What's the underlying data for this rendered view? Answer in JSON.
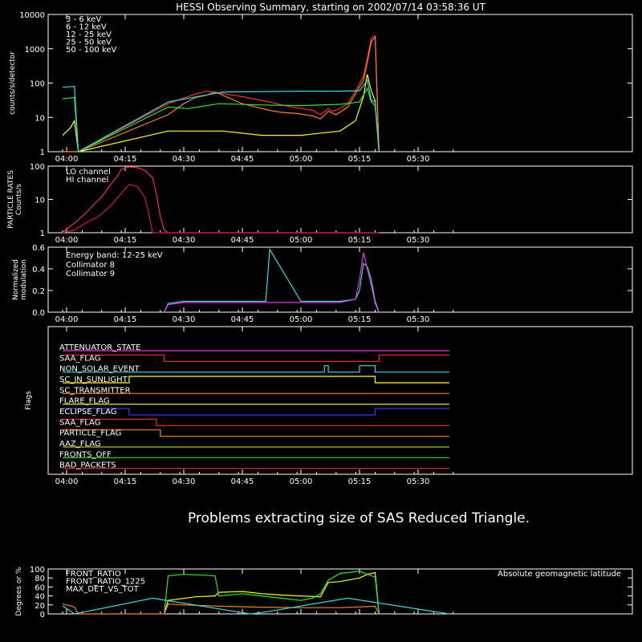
{
  "title": "HESSI Observing Summary, starting on 2002/07/14 03:58:36 UT",
  "message": "Problems extracting size of SAS Reduced Triangle.",
  "colors": {
    "background": "#000000",
    "axes": "#ffffff",
    "red": "#ff2a2a",
    "orange": "#ff7f1a",
    "yellow": "#ffff00",
    "green": "#22ee22",
    "cyan": "#33dddd",
    "magenta": "#ee33ee",
    "blue": "#3333ff",
    "crimson": "#dd1144",
    "olive": "#bbbb33"
  },
  "time_ticks": [
    "04:00",
    "04:15",
    "04:30",
    "04:45",
    "05:00",
    "05:15",
    "05:30"
  ],
  "chart_data": [
    {
      "type": "line",
      "panel": "count_rates",
      "ylabel": "counts/s/detector",
      "yscale": "log",
      "ylim": [
        1,
        10000
      ],
      "ytick_labels": [
        "1",
        "10",
        "100",
        "1000",
        "10000"
      ],
      "legend_position": "top-left",
      "x_unit": "UT",
      "series": [
        {
          "name": "3 - 6 keV",
          "color": "#ff2a2a",
          "x": [
            "03:59",
            "04:01",
            "04:02",
            "04:03",
            "04:26",
            "04:33",
            "04:36",
            "04:39",
            "04:45",
            "04:52",
            "04:56",
            "04:59",
            "05:03",
            "05:05",
            "05:07",
            "05:08",
            "05:10",
            "05:12",
            "05:14",
            "05:16",
            "05:17",
            "05:18",
            "05:19",
            "05:20"
          ],
          "y": [
            1,
            1,
            1,
            1,
            25,
            48,
            58,
            52,
            40,
            28,
            22,
            19,
            16,
            12,
            18,
            15,
            18,
            25,
            60,
            160,
            520,
            2000,
            2400,
            1
          ]
        },
        {
          "name": "6 - 12 keV",
          "color": "#ff7f1a",
          "x": [
            "03:59",
            "04:01",
            "04:02",
            "04:03",
            "04:26",
            "04:30",
            "04:33",
            "04:36",
            "04:38",
            "04:45",
            "04:52",
            "04:55",
            "04:59",
            "05:03",
            "05:05",
            "05:07",
            "05:09",
            "05:12",
            "05:14",
            "05:16",
            "05:17",
            "05:18",
            "05:19",
            "05:20"
          ],
          "y": [
            1,
            1,
            1,
            1,
            12,
            25,
            38,
            45,
            55,
            25,
            16,
            14,
            13,
            11,
            9,
            15,
            12,
            20,
            50,
            120,
            400,
            1600,
            2200,
            1
          ]
        },
        {
          "name": "12 - 25 keV",
          "color": "#ffff00",
          "x": [
            "03:59",
            "04:01",
            "04:02",
            "04:03",
            "04:26",
            "04:31",
            "04:40",
            "04:50",
            "05:00",
            "05:10",
            "05:14",
            "05:16",
            "05:17",
            "05:18",
            "05:19",
            "05:20"
          ],
          "y": [
            3,
            5,
            8,
            1,
            4,
            4,
            4,
            3,
            3,
            4,
            8,
            40,
            180,
            60,
            30,
            1
          ]
        },
        {
          "name": "25 - 50 keV",
          "color": "#22ee22",
          "x": [
            "03:59",
            "04:02",
            "04:03",
            "04:26",
            "04:31",
            "04:39",
            "04:50",
            "05:00",
            "05:10",
            "05:15",
            "05:17",
            "05:18",
            "05:19",
            "05:20"
          ],
          "y": [
            35,
            38,
            1,
            20,
            18,
            25,
            23,
            22,
            24,
            28,
            70,
            28,
            22,
            1
          ]
        },
        {
          "name": "50 - 100 keV",
          "color": "#33dddd",
          "x": [
            "03:59",
            "04:02",
            "04:03",
            "04:26",
            "04:40",
            "05:00",
            "05:10",
            "05:15",
            "05:17",
            "05:18",
            "05:19",
            "05:20"
          ],
          "y": [
            75,
            80,
            1,
            28,
            55,
            58,
            58,
            60,
            120,
            32,
            28,
            1
          ]
        }
      ]
    },
    {
      "type": "line",
      "panel": "particle_rates",
      "ylabel": "PARTICLE RATES Counts/s",
      "yscale": "log",
      "ylim": [
        1,
        100
      ],
      "ytick_labels": [
        "1",
        "10",
        "100"
      ],
      "legend_position": "top-left",
      "series": [
        {
          "name": "LO channel",
          "color": "#ff2a2a",
          "x": [
            "03:59",
            "04:01",
            "04:03",
            "04:05",
            "04:07",
            "04:09",
            "04:11",
            "04:13",
            "04:14",
            "04:16",
            "04:18",
            "04:20",
            "04:22",
            "04:23",
            "04:24",
            "04:25",
            "04:26",
            "05:20"
          ],
          "y": [
            1,
            1.6,
            2.4,
            4,
            7,
            12,
            25,
            50,
            80,
            95,
            90,
            75,
            45,
            15,
            3,
            1.2,
            1,
            1
          ]
        },
        {
          "name": "HI channel",
          "color": "#dd1144",
          "x": [
            "03:59",
            "04:02",
            "04:05",
            "04:08",
            "04:11",
            "04:14",
            "04:16",
            "04:18",
            "04:20",
            "04:21",
            "04:22",
            "05:20"
          ],
          "y": [
            1,
            1.2,
            2,
            3,
            6,
            15,
            28,
            25,
            12,
            4,
            1,
            1
          ]
        }
      ]
    },
    {
      "type": "line",
      "panel": "modulation",
      "title": "Energy band: 12-25 keV",
      "ylabel": "Normalized modulation",
      "ylim": [
        0,
        0.6
      ],
      "ytick_labels": [
        "0.0",
        "0.2",
        "0.4",
        "0.6"
      ],
      "legend_position": "top-left",
      "series": [
        {
          "name": "Collimator 8",
          "color": "#33dddd",
          "x": [
            "04:25",
            "04:26",
            "04:30",
            "04:40",
            "04:51",
            "04:52",
            "05:00",
            "05:10",
            "05:14",
            "05:15",
            "05:16",
            "05:17",
            "05:18",
            "05:19",
            "05:20"
          ],
          "y": [
            0,
            0.08,
            0.1,
            0.1,
            0.1,
            0.58,
            0.1,
            0.1,
            0.12,
            0.2,
            0.45,
            0.42,
            0.3,
            0.1,
            0
          ]
        },
        {
          "name": "Collimator 9",
          "color": "#ee33ee",
          "x": [
            "04:25",
            "04:26",
            "04:30",
            "04:40",
            "05:00",
            "05:10",
            "05:14",
            "05:15",
            "05:16",
            "05:17",
            "05:18",
            "05:19",
            "05:20"
          ],
          "y": [
            0,
            0.07,
            0.09,
            0.09,
            0.09,
            0.09,
            0.12,
            0.3,
            0.55,
            0.4,
            0.25,
            0.08,
            0
          ]
        }
      ]
    },
    {
      "type": "line",
      "panel": "flags",
      "ylabel": "Flags",
      "series": [
        {
          "name": "ATTENUATOR_STATE",
          "color": "#ee33ee",
          "x": [
            "03:59",
            "05:38"
          ],
          "y": [
            0,
            0
          ]
        },
        {
          "name": "SAA_FLAG",
          "color": "#ff2a2a",
          "x": [
            "03:59",
            "04:25",
            "04:25",
            "05:20",
            "05:20",
            "05:38"
          ],
          "y": [
            1,
            1,
            0,
            0,
            1,
            1
          ]
        },
        {
          "name": "NON_SOLAR_EVENT",
          "color": "#33dddd",
          "x": [
            "03:59",
            "05:06",
            "05:06",
            "05:07",
            "05:07",
            "05:15",
            "05:15",
            "05:19",
            "05:19",
            "05:38"
          ],
          "y": [
            0,
            0,
            1,
            1,
            0,
            0,
            1,
            1,
            0,
            0
          ]
        },
        {
          "name": "SC_IN_SUNLIGHT",
          "color": "#ffff00",
          "x": [
            "03:59",
            "04:16",
            "04:16",
            "05:19",
            "05:19",
            "05:38"
          ],
          "y": [
            0,
            0,
            1,
            1,
            0,
            0
          ]
        },
        {
          "name": "SC_TRANSMITTER",
          "color": "#ff7f1a",
          "x": [
            "03:59",
            "05:38"
          ],
          "y": [
            0,
            0
          ]
        },
        {
          "name": "FLARE_FLAG",
          "color": "#ffff00",
          "x": [
            "03:59",
            "05:38"
          ],
          "y": [
            0,
            0
          ]
        },
        {
          "name": "ECLIPSE_FLAG",
          "color": "#3333ff",
          "x": [
            "03:59",
            "04:16",
            "04:16",
            "05:19",
            "05:19",
            "05:38"
          ],
          "y": [
            1,
            1,
            0,
            0,
            1,
            1
          ]
        },
        {
          "name": "SAA_FLAG",
          "color": "#ff2a2a",
          "x": [
            "03:59",
            "04:23",
            "04:23",
            "05:38"
          ],
          "y": [
            1,
            1,
            0,
            0
          ]
        },
        {
          "name": "PARTICLE_FLAG",
          "color": "#ff7f1a",
          "x": [
            "03:59",
            "04:24",
            "04:24",
            "05:38"
          ],
          "y": [
            1,
            1,
            0,
            0
          ]
        },
        {
          "name": "AAZ_FLAG",
          "color": "#bbbb33",
          "x": [
            "03:59",
            "05:38"
          ],
          "y": [
            0,
            0
          ]
        },
        {
          "name": "FRONTS_OFF",
          "color": "#22ee22",
          "x": [
            "03:59",
            "05:38"
          ],
          "y": [
            0,
            0
          ]
        },
        {
          "name": "BAD_PACKETS",
          "color": "#ff2a2a",
          "x": [
            "03:59",
            "05:38"
          ],
          "y": [
            0,
            0
          ]
        }
      ]
    },
    {
      "type": "line",
      "panel": "ratios",
      "ylabel": "Degrees or %",
      "ylim": [
        0,
        100
      ],
      "ytick_labels": [
        "0",
        "20",
        "40",
        "60",
        "80",
        "100"
      ],
      "legend_position": "top-left",
      "series": [
        {
          "name": "FRONT_RATIO",
          "color": "#ffff00",
          "x": [
            "04:25",
            "04:26",
            "04:33",
            "04:38",
            "04:39",
            "04:45",
            "04:50",
            "04:55",
            "05:00",
            "05:05",
            "05:07",
            "05:10",
            "05:15",
            "05:17",
            "05:19",
            "05:20"
          ],
          "y": [
            0,
            30,
            38,
            40,
            48,
            50,
            45,
            42,
            40,
            38,
            70,
            72,
            80,
            88,
            92,
            0
          ]
        },
        {
          "name": "FRONT_RATIO_1225",
          "color": "#22ee22",
          "x": [
            "04:25",
            "04:26",
            "04:30",
            "04:38",
            "04:39",
            "04:45",
            "04:50",
            "04:55",
            "05:00",
            "05:03",
            "05:05",
            "05:07",
            "05:10",
            "05:15",
            "05:18",
            "05:19",
            "05:20"
          ],
          "y": [
            0,
            85,
            88,
            85,
            40,
            45,
            40,
            35,
            30,
            35,
            45,
            75,
            90,
            95,
            85,
            82,
            0
          ]
        },
        {
          "name": "MAX_DET_VS_TOT",
          "color": "#ff7f1a",
          "x": [
            "03:59",
            "04:01",
            "04:02",
            "04:03",
            "04:25",
            "04:26",
            "04:30",
            "04:40",
            "04:50",
            "05:00",
            "05:10",
            "05:19",
            "05:20"
          ],
          "y": [
            22,
            18,
            15,
            0,
            0,
            22,
            20,
            17,
            15,
            14,
            14,
            17,
            0
          ]
        },
        {
          "name": "Absolute geomagnetic latitude",
          "color": "#33dddd",
          "x": [
            "03:59",
            "04:02",
            "04:22",
            "04:47",
            "04:50",
            "05:12",
            "05:38"
          ],
          "y": [
            18,
            0,
            35,
            0,
            3,
            35,
            0
          ]
        }
      ]
    }
  ]
}
